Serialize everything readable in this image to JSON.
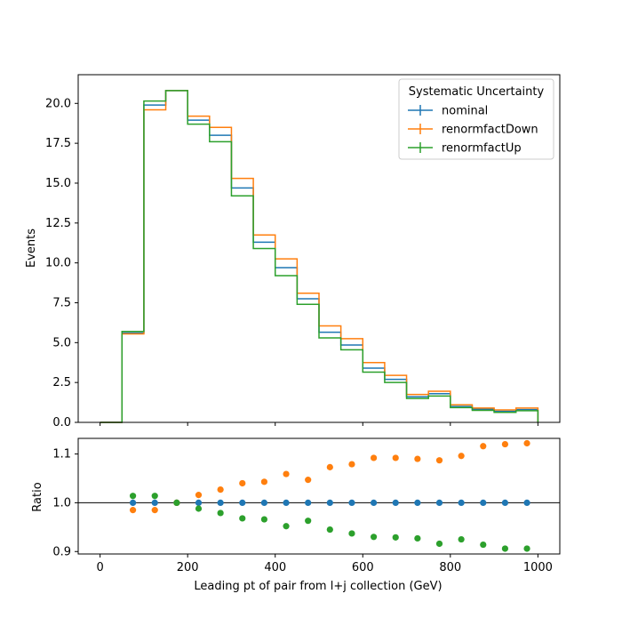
{
  "chart_data": {
    "type": "histogram-with-ratio",
    "xlabel": "Leading pt of pair from l+j collection (GeV)",
    "bin_edges": [
      0,
      50,
      100,
      150,
      200,
      250,
      300,
      350,
      400,
      450,
      500,
      550,
      600,
      650,
      700,
      750,
      800,
      850,
      900,
      950,
      1000
    ],
    "x_ticks": [
      0,
      200,
      400,
      600,
      800,
      1000
    ],
    "top": {
      "ylabel": "Events",
      "ylim": [
        0,
        21.8
      ],
      "y_ticks": [
        0.0,
        2.5,
        5.0,
        7.5,
        10.0,
        12.5,
        15.0,
        17.5,
        20.0
      ],
      "y_tick_labels": [
        "0.0",
        "2.5",
        "5.0",
        "7.5",
        "10.0",
        "12.5",
        "15.0",
        "17.5",
        "20.0"
      ],
      "series": [
        {
          "name": "nominal",
          "color": "#1f77b4",
          "values": [
            0,
            5.6,
            19.9,
            20.8,
            18.95,
            18.0,
            14.7,
            11.3,
            9.7,
            7.75,
            5.65,
            4.85,
            3.4,
            2.7,
            1.6,
            1.8,
            1.0,
            0.82,
            0.7,
            0.8
          ]
        },
        {
          "name": "renormfactDown",
          "color": "#ff7f0e",
          "values": [
            0,
            5.55,
            19.6,
            20.8,
            19.2,
            18.5,
            15.3,
            11.75,
            10.25,
            8.1,
            6.05,
            5.25,
            3.75,
            2.95,
            1.75,
            1.95,
            1.1,
            0.9,
            0.78,
            0.9
          ]
        },
        {
          "name": "renormfactUp",
          "color": "#2ca02c",
          "values": [
            0,
            5.7,
            20.15,
            20.8,
            18.7,
            17.6,
            14.2,
            10.9,
            9.2,
            7.4,
            5.3,
            4.55,
            3.15,
            2.5,
            1.5,
            1.65,
            0.93,
            0.75,
            0.63,
            0.73
          ]
        }
      ]
    },
    "ratio": {
      "ylabel": "Ratio",
      "ylim": [
        0.895,
        1.132
      ],
      "y_ticks": [
        0.9,
        1.0,
        1.1
      ],
      "y_tick_labels": [
        "0.9",
        "1.0",
        "1.1"
      ],
      "reference_line": 1.0,
      "x": [
        75,
        125,
        175,
        225,
        275,
        325,
        375,
        425,
        475,
        525,
        575,
        625,
        675,
        725,
        775,
        825,
        875,
        925,
        975
      ],
      "series": [
        {
          "name": "nominal",
          "color": "#1f77b4",
          "values": [
            1.0,
            1.0,
            1.0,
            1.0,
            1.0,
            1.0,
            1.0,
            1.0,
            1.0,
            1.0,
            1.0,
            1.0,
            1.0,
            1.0,
            1.0,
            1.0,
            1.0,
            1.0,
            1.0
          ]
        },
        {
          "name": "renormfactDown",
          "color": "#ff7f0e",
          "values": [
            0.985,
            0.985,
            1.0,
            1.016,
            1.027,
            1.04,
            1.043,
            1.059,
            1.047,
            1.073,
            1.079,
            1.092,
            1.092,
            1.09,
            1.087,
            1.096,
            1.116,
            1.12,
            1.122
          ]
        },
        {
          "name": "renormfactUp",
          "color": "#2ca02c",
          "values": [
            1.014,
            1.014,
            1.0,
            0.988,
            0.979,
            0.968,
            0.966,
            0.952,
            0.963,
            0.945,
            0.937,
            0.93,
            0.929,
            0.927,
            0.916,
            0.925,
            0.914,
            0.906,
            0.906
          ]
        }
      ]
    },
    "legend": {
      "title": "Systematic Uncertainty",
      "placement": "top-right",
      "entries": [
        "nominal",
        "renormfactDown",
        "renormfactUp"
      ]
    }
  }
}
